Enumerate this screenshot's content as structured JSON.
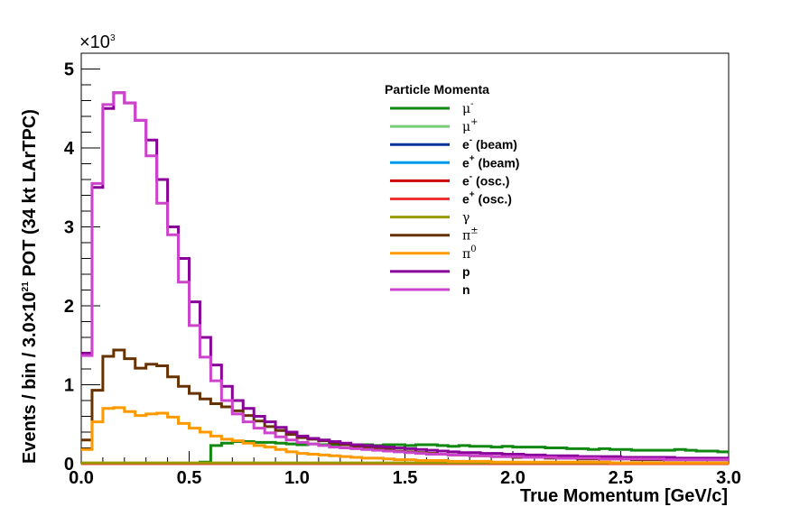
{
  "chart_data": {
    "type": "line",
    "step": true,
    "ylabel_parts": [
      "Events / bin / 3.0",
      "×",
      "10",
      "21",
      " POT (34 kt LArTPC)"
    ],
    "xlabel": "True Momentum [GeV/c]",
    "y_multiplier": "×10",
    "y_multiplier_exp": "3",
    "xlim": [
      0,
      3
    ],
    "ylim": [
      0,
      5.2
    ],
    "x_ticks": [
      0.0,
      0.5,
      1.0,
      1.5,
      2.0,
      2.5,
      3.0
    ],
    "x_tick_labels": [
      "0.0",
      "0.5",
      "1.0",
      "1.5",
      "2.0",
      "2.5",
      "3.0"
    ],
    "y_ticks": [
      0,
      1,
      2,
      3,
      4,
      5
    ],
    "y_tick_labels": [
      "0",
      "1",
      "2",
      "3",
      "4",
      "5"
    ],
    "grid": false,
    "legend_title": "Particle Momenta",
    "legend_position": "top-center",
    "bin_width": 0.05,
    "series": [
      {
        "name": "μ",
        "sup": "-",
        "color": "#118811",
        "values": [
          0,
          0,
          0,
          0,
          0,
          0,
          0,
          0,
          0,
          0,
          0,
          0.02,
          0.23,
          0.26,
          0.28,
          0.28,
          0.27,
          0.27,
          0.26,
          0.25,
          0.24,
          0.25,
          0.24,
          0.24,
          0.24,
          0.24,
          0.24,
          0.23,
          0.24,
          0.24,
          0.23,
          0.24,
          0.24,
          0.23,
          0.22,
          0.23,
          0.22,
          0.22,
          0.21,
          0.22,
          0.21,
          0.21,
          0.21,
          0.2,
          0.2,
          0.19,
          0.19,
          0.18,
          0.19,
          0.18,
          0.18,
          0.17,
          0.17,
          0.17,
          0.17,
          0.18,
          0.17,
          0.16,
          0.16,
          0.15
        ]
      },
      {
        "name": "μ",
        "sup": "+",
        "color": "#77cc77",
        "values": [
          0,
          0,
          0,
          0,
          0,
          0,
          0,
          0,
          0,
          0,
          0,
          0,
          0,
          0,
          0,
          0,
          0,
          0,
          0,
          0,
          0,
          0,
          0,
          0,
          0,
          0,
          0,
          0,
          0,
          0,
          0,
          0,
          0,
          0,
          0,
          0,
          0,
          0,
          0,
          0,
          0,
          0,
          0,
          0,
          0,
          0,
          0,
          0,
          0,
          0,
          0,
          0,
          0,
          0,
          0,
          0,
          0,
          0,
          0,
          0
        ]
      },
      {
        "name": "e",
        "sup": "-",
        "suffix": " (beam)",
        "color": "#003399",
        "values": [
          0,
          0,
          0,
          0,
          0,
          0,
          0,
          0,
          0,
          0,
          0,
          0,
          0,
          0,
          0,
          0,
          0,
          0,
          0,
          0,
          0,
          0,
          0,
          0,
          0,
          0,
          0,
          0,
          0,
          0,
          0,
          0,
          0,
          0,
          0,
          0,
          0,
          0,
          0,
          0,
          0,
          0,
          0,
          0,
          0,
          0,
          0,
          0,
          0,
          0,
          0,
          0,
          0,
          0,
          0,
          0,
          0,
          0,
          0,
          0
        ]
      },
      {
        "name": "e",
        "sup": "+",
        "suffix": " (beam)",
        "color": "#0099ee",
        "values": [
          0,
          0,
          0,
          0,
          0,
          0,
          0,
          0,
          0,
          0,
          0,
          0,
          0,
          0,
          0,
          0,
          0,
          0,
          0,
          0,
          0,
          0,
          0,
          0,
          0,
          0,
          0,
          0,
          0,
          0,
          0,
          0,
          0,
          0,
          0,
          0,
          0,
          0,
          0,
          0,
          0,
          0,
          0,
          0,
          0,
          0,
          0,
          0,
          0,
          0,
          0,
          0,
          0,
          0,
          0,
          0,
          0,
          0,
          0,
          0
        ]
      },
      {
        "name": "e",
        "sup": "-",
        "suffix": " (osc.)",
        "color": "#cc0000",
        "values": [
          0,
          0,
          0,
          0,
          0,
          0,
          0,
          0,
          0,
          0,
          0,
          0,
          0,
          0,
          0,
          0,
          0,
          0,
          0,
          0,
          0,
          0,
          0,
          0,
          0,
          0,
          0,
          0,
          0,
          0,
          0,
          0,
          0,
          0,
          0,
          0,
          0,
          0,
          0,
          0,
          0,
          0,
          0,
          0,
          0,
          0,
          0,
          0,
          0,
          0,
          0,
          0,
          0,
          0,
          0,
          0,
          0,
          0,
          0,
          0
        ]
      },
      {
        "name": "e",
        "sup": "+",
        "suffix": " (osc.)",
        "color": "#ee3333",
        "values": [
          0,
          0,
          0,
          0,
          0,
          0,
          0,
          0,
          0,
          0,
          0,
          0,
          0,
          0,
          0,
          0,
          0,
          0,
          0,
          0,
          0,
          0,
          0,
          0,
          0,
          0,
          0,
          0,
          0,
          0,
          0,
          0,
          0,
          0,
          0,
          0,
          0,
          0,
          0,
          0,
          0,
          0,
          0,
          0,
          0,
          0,
          0,
          0,
          0,
          0,
          0,
          0,
          0,
          0,
          0,
          0,
          0,
          0,
          0,
          0
        ]
      },
      {
        "name": "γ",
        "color": "#999900",
        "values": [
          0.01,
          0.01,
          0.01,
          0.01,
          0.01,
          0.01,
          0.01,
          0.01,
          0.01,
          0.01,
          0.01,
          0.01,
          0.01,
          0.01,
          0.01,
          0.01,
          0.01,
          0.01,
          0.01,
          0.01,
          0.01,
          0.01,
          0.01,
          0.01,
          0.01,
          0.01,
          0.01,
          0.01,
          0.01,
          0.01,
          0.01,
          0.01,
          0.01,
          0.01,
          0.01,
          0.01,
          0.01,
          0.01,
          0.01,
          0.01,
          0.01,
          0.01,
          0.01,
          0.01,
          0.01,
          0.01,
          0.01,
          0.01,
          0.01,
          0.01,
          0.01,
          0.01,
          0.01,
          0.01,
          0.01,
          0.01,
          0.01,
          0.01,
          0.01,
          0.01
        ]
      },
      {
        "name": "π",
        "sup": "±",
        "color": "#663300",
        "values": [
          0.3,
          0.93,
          1.36,
          1.44,
          1.33,
          1.21,
          1.26,
          1.24,
          1.1,
          0.98,
          0.89,
          0.82,
          0.76,
          0.72,
          0.67,
          0.61,
          0.54,
          0.47,
          0.42,
          0.37,
          0.33,
          0.31,
          0.29,
          0.26,
          0.24,
          0.22,
          0.2,
          0.19,
          0.18,
          0.16,
          0.15,
          0.14,
          0.13,
          0.12,
          0.11,
          0.11,
          0.1,
          0.1,
          0.09,
          0.09,
          0.08,
          0.08,
          0.08,
          0.07,
          0.07,
          0.07,
          0.06,
          0.06,
          0.06,
          0.06,
          0.06,
          0.05,
          0.05,
          0.05,
          0.05,
          0.05,
          0.05,
          0.05,
          0.05,
          0.05
        ]
      },
      {
        "name": "π",
        "sup": "0",
        "color": "#ff9900",
        "values": [
          0.18,
          0.53,
          0.7,
          0.71,
          0.66,
          0.61,
          0.63,
          0.64,
          0.59,
          0.51,
          0.45,
          0.4,
          0.35,
          0.31,
          0.29,
          0.26,
          0.23,
          0.21,
          0.18,
          0.15,
          0.13,
          0.12,
          0.11,
          0.1,
          0.09,
          0.08,
          0.07,
          0.07,
          0.06,
          0.05,
          0.05,
          0.04,
          0.04,
          0.04,
          0.03,
          0.03,
          0.03,
          0.03,
          0.02,
          0.02,
          0.02,
          0.02,
          0.02,
          0.02,
          0.02,
          0.02,
          0.02,
          0.02,
          0.02,
          0.01,
          0.01,
          0.01,
          0.01,
          0.01,
          0.01,
          0.01,
          0.01,
          0.01,
          0.01,
          0.01
        ]
      },
      {
        "name": "p",
        "color": "#880099",
        "values": [
          1.4,
          3.5,
          4.5,
          4.7,
          4.57,
          4.35,
          4.1,
          3.6,
          3.0,
          2.6,
          2.05,
          1.6,
          1.25,
          0.98,
          0.8,
          0.7,
          0.6,
          0.53,
          0.46,
          0.4,
          0.35,
          0.32,
          0.3,
          0.28,
          0.26,
          0.24,
          0.23,
          0.22,
          0.21,
          0.2,
          0.19,
          0.18,
          0.17,
          0.16,
          0.15,
          0.14,
          0.14,
          0.13,
          0.13,
          0.12,
          0.12,
          0.11,
          0.11,
          0.1,
          0.1,
          0.1,
          0.09,
          0.09,
          0.09,
          0.09,
          0.08,
          0.08,
          0.08,
          0.08,
          0.08,
          0.07,
          0.07,
          0.07,
          0.07,
          0.07
        ]
      },
      {
        "name": "n",
        "color": "#cc44cc",
        "values": [
          1.37,
          3.55,
          4.55,
          4.7,
          4.57,
          4.35,
          3.9,
          3.3,
          2.9,
          2.3,
          1.75,
          1.35,
          1.05,
          0.8,
          0.63,
          0.53,
          0.45,
          0.39,
          0.34,
          0.3,
          0.27,
          0.25,
          0.23,
          0.21,
          0.2,
          0.19,
          0.18,
          0.17,
          0.16,
          0.15,
          0.14,
          0.13,
          0.12,
          0.12,
          0.11,
          0.11,
          0.1,
          0.1,
          0.09,
          0.09,
          0.09,
          0.08,
          0.08,
          0.08,
          0.07,
          0.07,
          0.07,
          0.07,
          0.06,
          0.06,
          0.06,
          0.06,
          0.06,
          0.06,
          0.05,
          0.05,
          0.05,
          0.05,
          0.05,
          0.05
        ]
      }
    ]
  }
}
